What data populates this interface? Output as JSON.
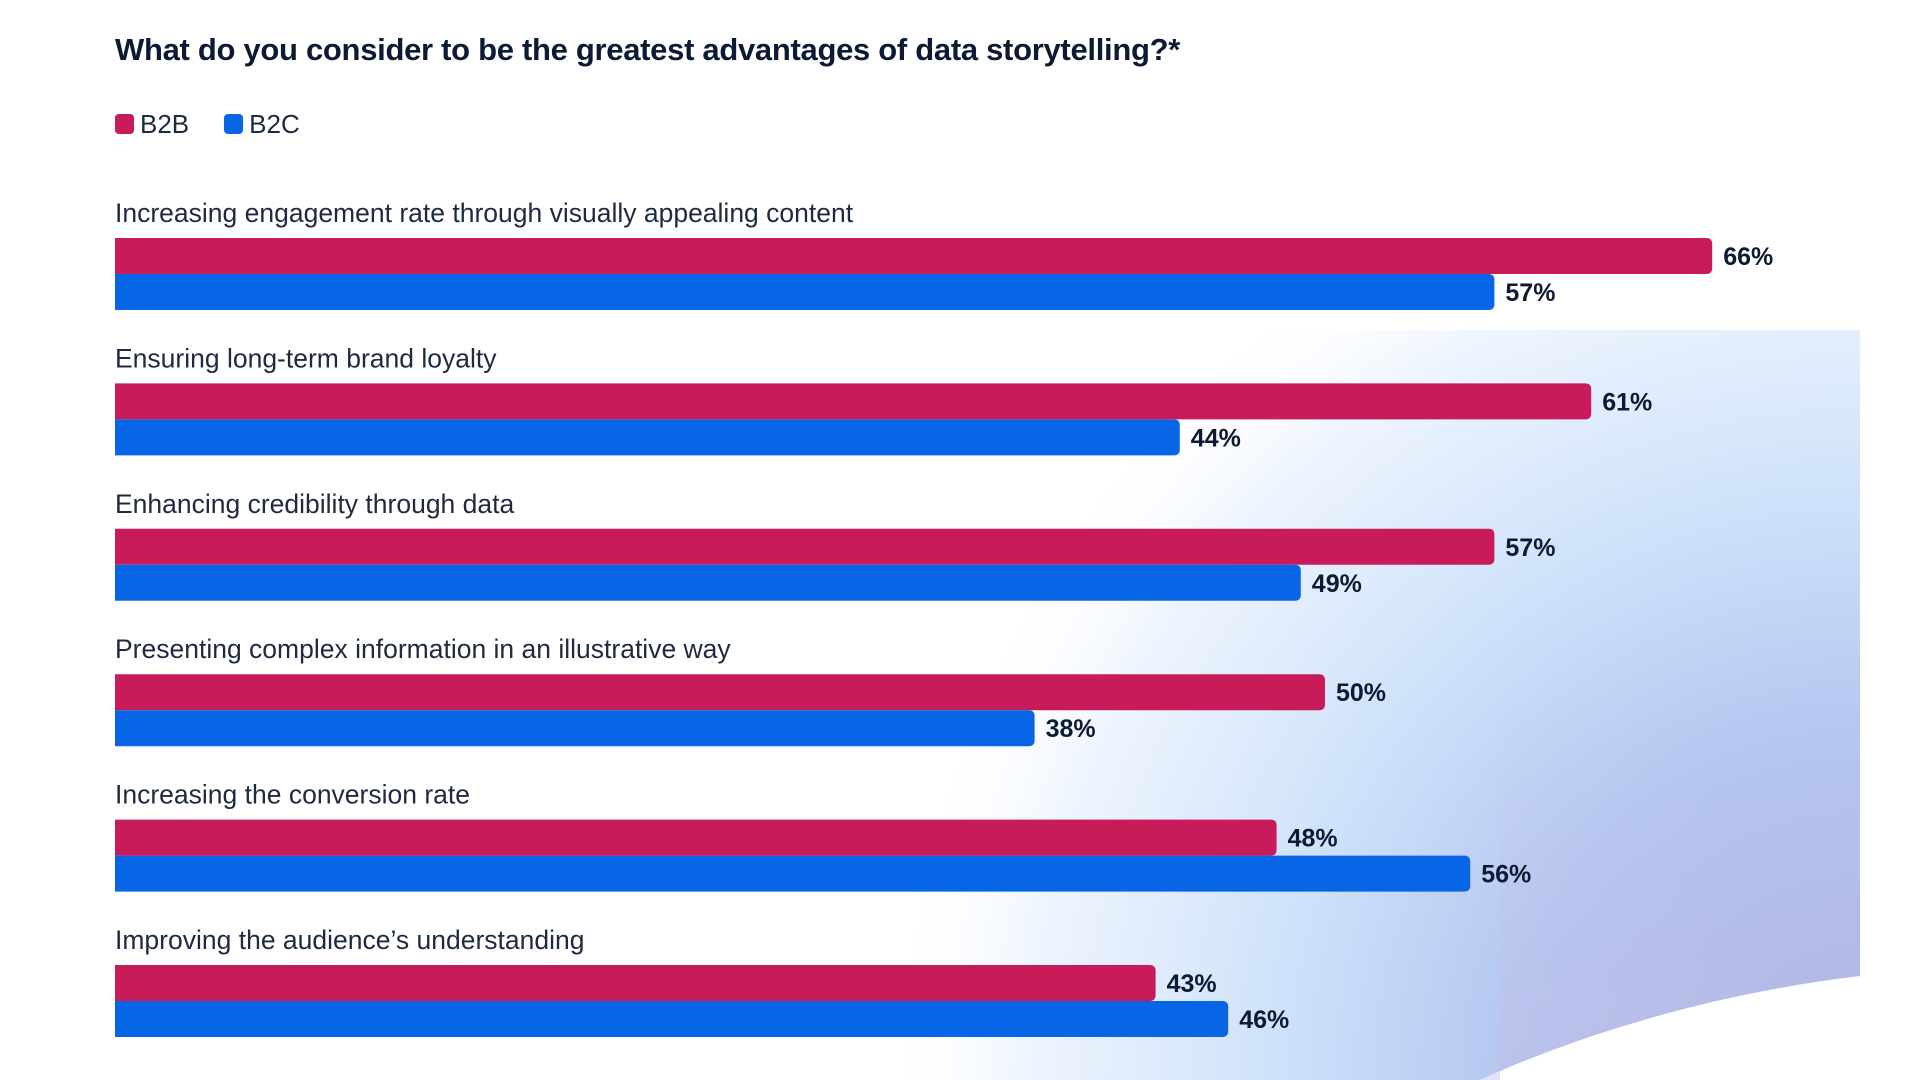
{
  "title": "What do you consider to be the greatest advantages of data storytelling?*",
  "legend": [
    {
      "label": "B2B",
      "color": "#c81c5a"
    },
    {
      "label": "B2C",
      "color": "#0866e6"
    }
  ],
  "chart_data": {
    "type": "bar",
    "orientation": "horizontal",
    "title": "What do you consider to be the greatest advantages of data storytelling?*",
    "xlabel": "",
    "ylabel": "",
    "unit": "%",
    "grid": false,
    "legend_position": "top-left",
    "xlim": [
      0,
      100
    ],
    "categories": [
      "Increasing engagement rate through visually appealing content",
      "Ensuring long-term brand loyalty",
      "Enhancing credibility through data",
      "Presenting complex information in an illustrative way",
      "Increasing the conversion rate",
      "Improving the audience’s understanding"
    ],
    "series": [
      {
        "name": "B2B",
        "color": "#c81c5a",
        "values": [
          66,
          61,
          57,
          50,
          48,
          43
        ]
      },
      {
        "name": "B2C",
        "color": "#0866e6",
        "values": [
          57,
          44,
          49,
          38,
          56,
          46
        ]
      }
    ]
  }
}
